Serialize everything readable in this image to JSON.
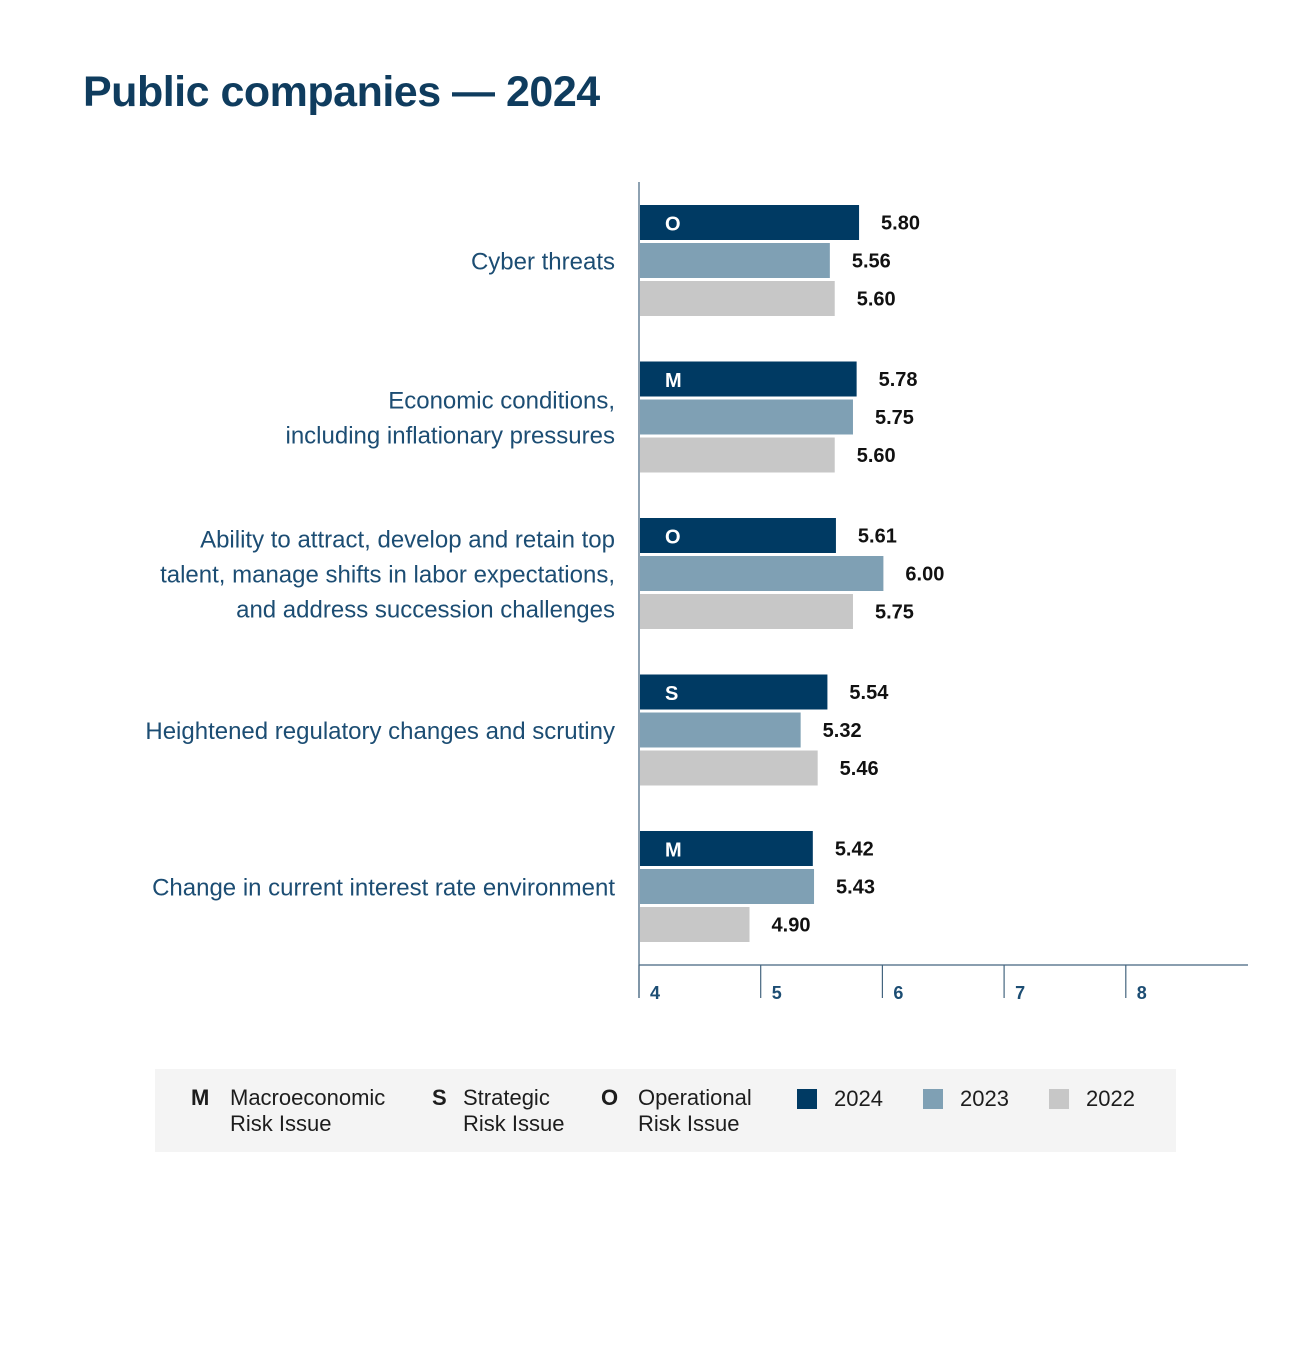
{
  "title": "Public companies — 2024",
  "colors": {
    "2024": "#003a63",
    "2023": "#7fa0b4",
    "2022": "#c7c7c7",
    "axis": "#44657f"
  },
  "legend": {
    "types": [
      {
        "code": "M",
        "line1": "Macroeconomic",
        "line2": "Risk Issue"
      },
      {
        "code": "S",
        "line1": "Strategic",
        "line2": "Risk Issue"
      },
      {
        "code": "O",
        "line1": "Operational",
        "line2": "Risk Issue"
      }
    ],
    "series": [
      "2024",
      "2023",
      "2022"
    ]
  },
  "chart_data": {
    "type": "bar",
    "orientation": "horizontal",
    "title": "Public companies — 2024",
    "categories": [
      {
        "label_lines": [
          "Cyber threats"
        ],
        "risk_type": "O"
      },
      {
        "label_lines": [
          "Economic conditions,",
          "including inflationary pressures"
        ],
        "risk_type": "M"
      },
      {
        "label_lines": [
          "Ability to attract, develop and retain top",
          "talent, manage shifts in labor expectations,",
          "and address succession challenges"
        ],
        "risk_type": "O"
      },
      {
        "label_lines": [
          "Heightened regulatory changes and scrutiny"
        ],
        "risk_type": "S"
      },
      {
        "label_lines": [
          "Change in current interest rate environment"
        ],
        "risk_type": "M"
      }
    ],
    "series": [
      {
        "name": "2024",
        "values": [
          5.8,
          5.78,
          5.61,
          5.54,
          5.42
        ],
        "labels": [
          "5.80",
          "5.78",
          "5.61",
          "5.54",
          "5.42"
        ]
      },
      {
        "name": "2023",
        "values": [
          5.56,
          5.75,
          6.0,
          5.32,
          5.43
        ],
        "labels": [
          "5.56",
          "5.75",
          "6.00",
          "5.32",
          "5.43"
        ]
      },
      {
        "name": "2022",
        "values": [
          5.6,
          5.6,
          5.75,
          5.46,
          4.9
        ],
        "labels": [
          "5.60",
          "5.60",
          "5.75",
          "5.46",
          "4.90"
        ]
      }
    ],
    "xlim": [
      4,
      9
    ],
    "xticks": [
      "4",
      "5",
      "6",
      "7",
      "8"
    ],
    "grid": false,
    "legend_position": "bottom"
  }
}
